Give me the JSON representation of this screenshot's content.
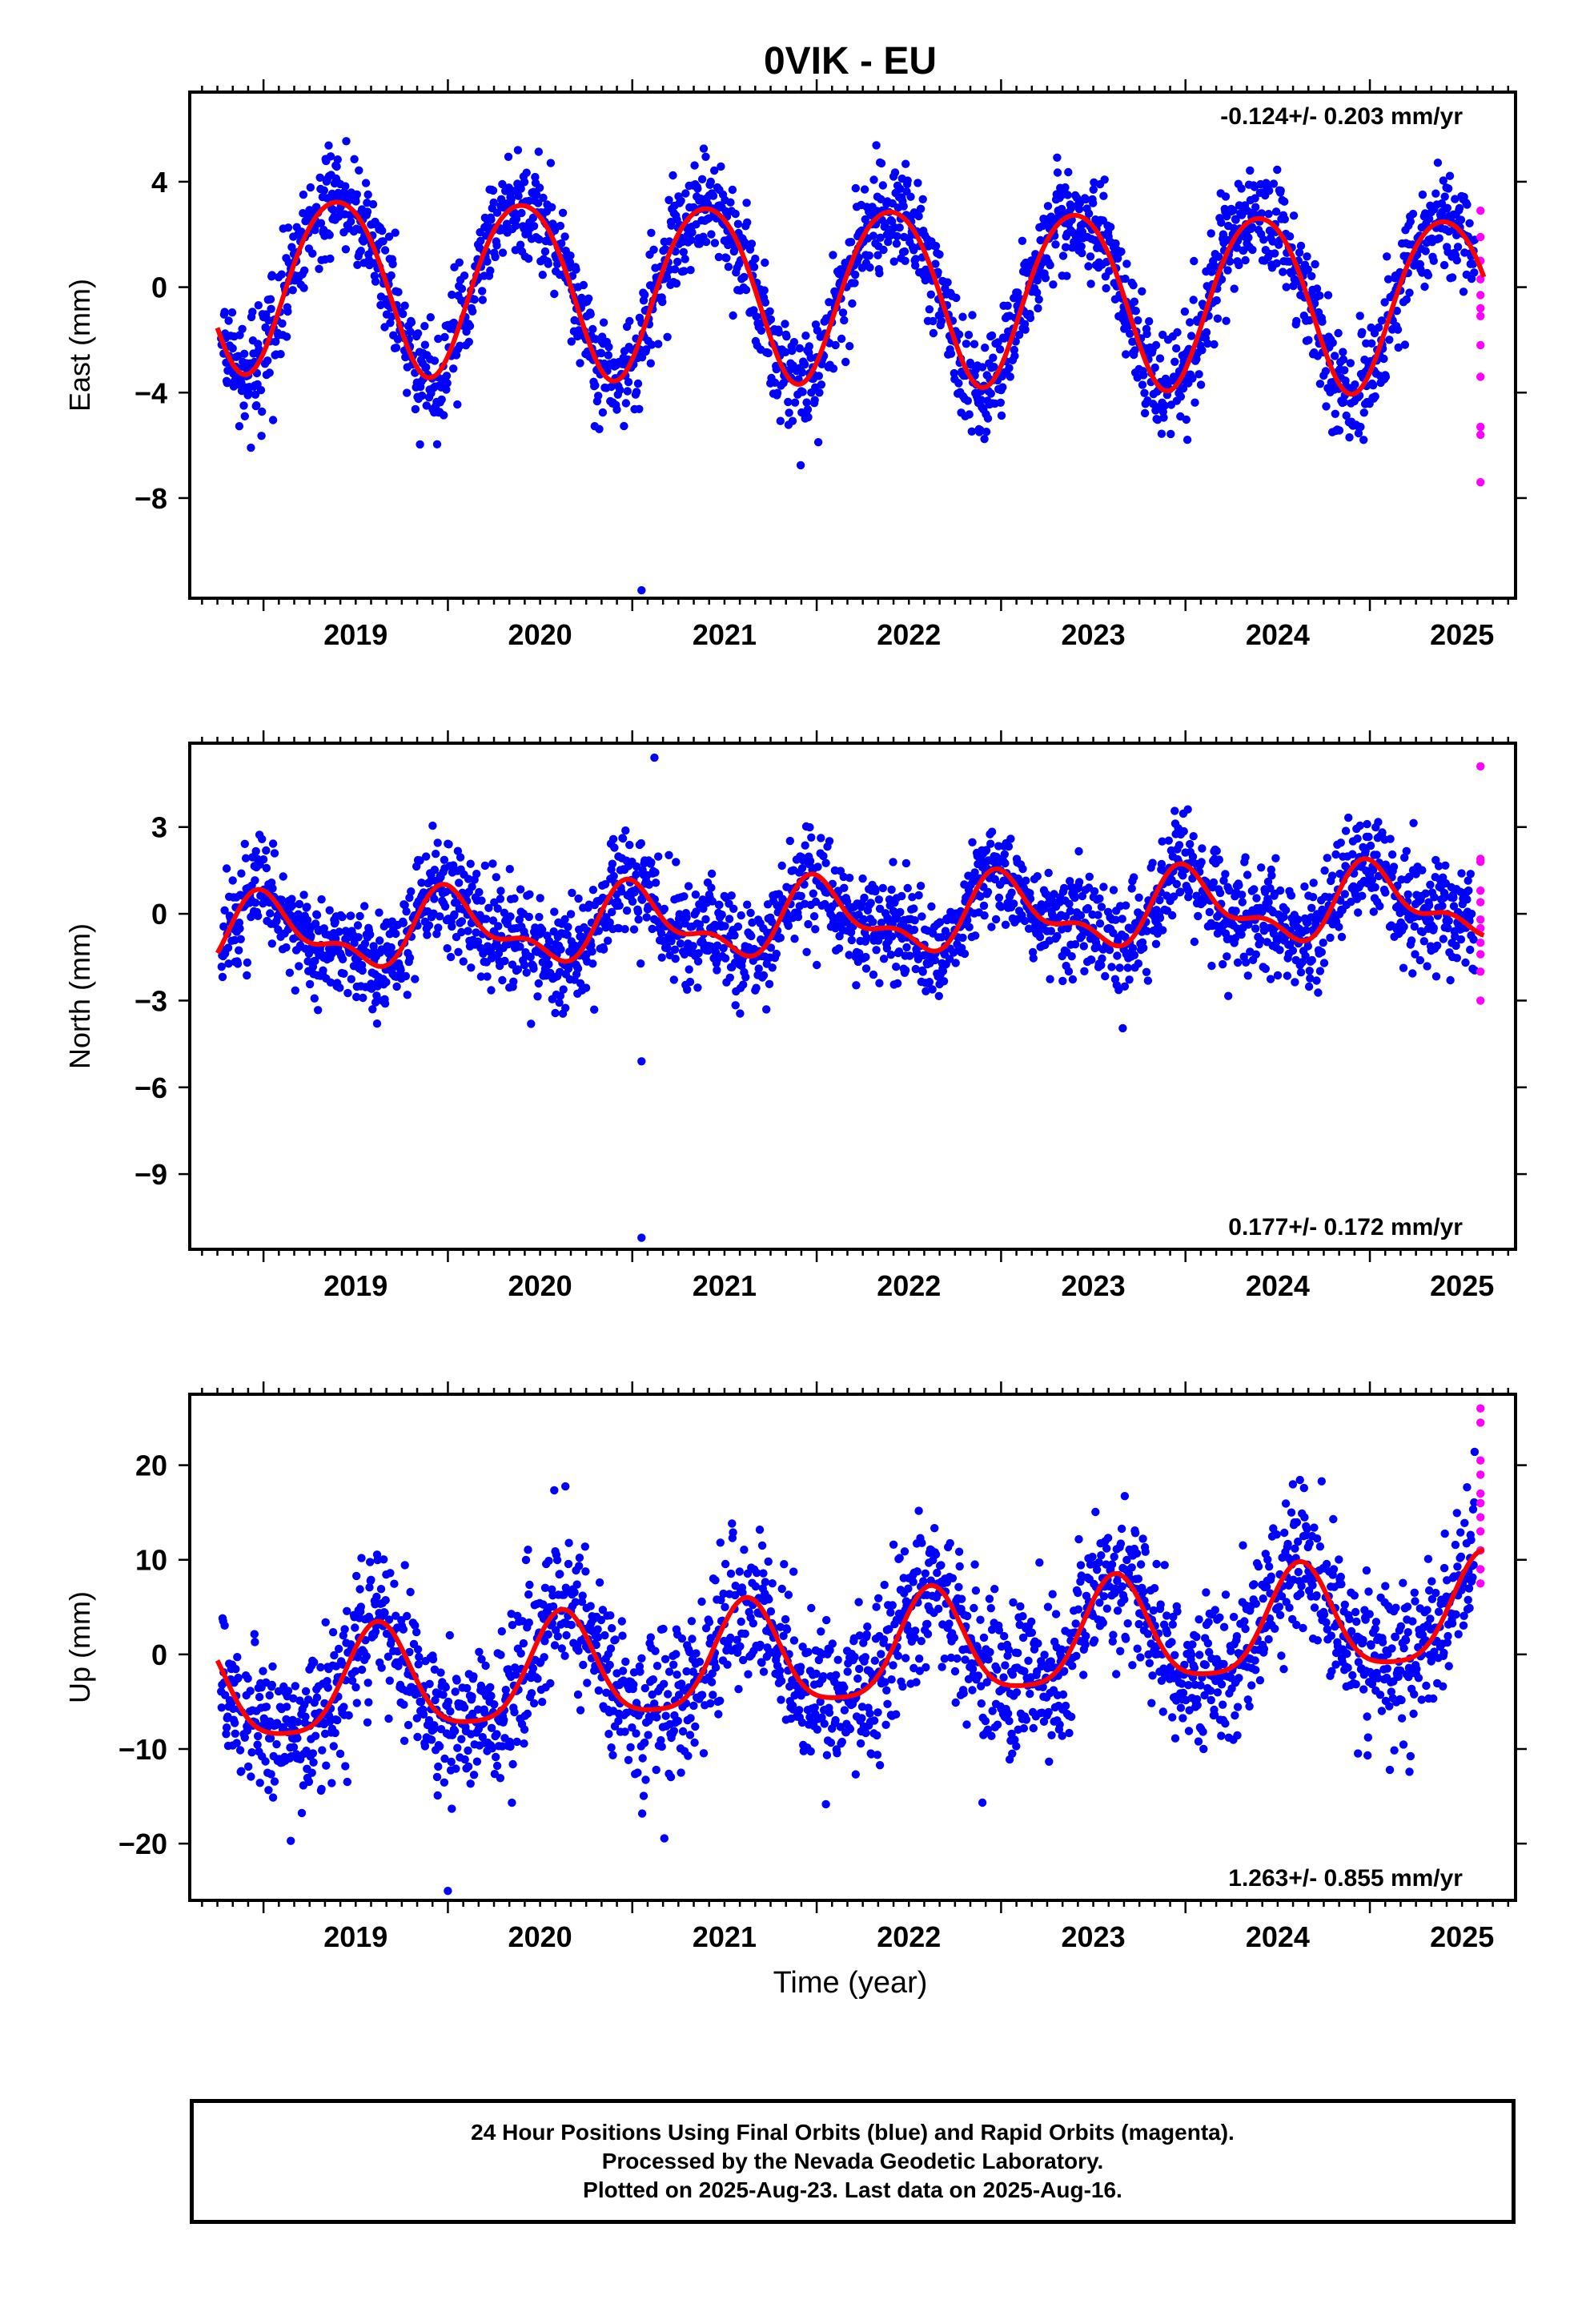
{
  "title": "0VIK - EU",
  "colors": {
    "final": "#0000ff",
    "rapid": "#ff00ff",
    "model": "#ff0000",
    "axis": "#000000"
  },
  "xlabel": "Time (year)",
  "caption": [
    "24 Hour Positions Using Final Orbits (blue) and Rapid Orbits (magenta).",
    "Processed by the Nevada Geodetic Laboratory.",
    "Plotted on 2025-Aug-23. Last data on 2025-Aug-16."
  ],
  "chart_data": [
    {
      "type": "scatter",
      "id": "east",
      "ylabel": "East (mm)",
      "rate_text": "-0.124+/- 0.203 mm/yr",
      "rate_position": "top-right",
      "xlim": [
        2018.6,
        2025.79
      ],
      "ylim": [
        -11.8,
        7.4
      ],
      "xticks": [
        2019,
        2020,
        2021,
        2022,
        2023,
        2024,
        2025
      ],
      "xtick_labels": [
        "2019",
        "2020",
        "2021",
        "2022",
        "2023",
        "2024",
        "2025"
      ],
      "yticks": [
        4,
        0,
        -4,
        -8
      ],
      "ytick_labels": [
        "4",
        "0",
        "−4",
        "−8"
      ],
      "model": {
        "name": "",
        "start": 2018.75,
        "end": 2025.62,
        "offset": -0.1,
        "rate": -0.124,
        "ref_year": 2022.0,
        "annual_amp": 3.3,
        "annual_peak": 0.4,
        "semiannual_amp": 0.3,
        "semiannual_peak": 0.15,
        "amp_drift": 0.0
      },
      "final_series": {
        "name": "Final Orbits",
        "start": 2018.77,
        "end": 2025.57,
        "noise_sd": 1.0,
        "outliers": [
          [
            2021.05,
            -11.5
          ]
        ]
      },
      "rapid_series": {
        "name": "Rapid Orbits",
        "x": 2025.6,
        "values": [
          2.9,
          1.9,
          1.0,
          0.3,
          -0.3,
          -0.8,
          -1.1,
          -2.2,
          -3.4,
          -5.3,
          -5.6,
          -7.4
        ]
      }
    },
    {
      "type": "scatter",
      "id": "north",
      "ylabel": "North (mm)",
      "rate_text": "0.177+/- 0.172 mm/yr",
      "rate_position": "bottom-right",
      "xlim": [
        2018.6,
        2025.79
      ],
      "ylim": [
        -11.6,
        5.9
      ],
      "xticks": [
        2019,
        2020,
        2021,
        2022,
        2023,
        2024,
        2025
      ],
      "xtick_labels": [
        "2019",
        "2020",
        "2021",
        "2022",
        "2023",
        "2024",
        "2025"
      ],
      "yticks": [
        3,
        0,
        -3,
        -6,
        -9
      ],
      "ytick_labels": [
        "3",
        "0",
        "−3",
        "−6",
        "−9"
      ],
      "model": {
        "name": "",
        "start": 2018.75,
        "end": 2025.62,
        "offset": -0.2,
        "rate": 0.177,
        "ref_year": 2022.0,
        "annual_amp": 1.1,
        "annual_peak": 0.02,
        "semiannual_amp": 0.55,
        "semiannual_peak": 0.45,
        "amp_drift": 0.0
      },
      "final_series": {
        "name": "Final Orbits",
        "start": 2018.77,
        "end": 2025.57,
        "noise_sd": 0.9,
        "outliers": [
          [
            2021.12,
            5.4
          ],
          [
            2021.05,
            -5.1
          ],
          [
            2021.05,
            -11.2
          ]
        ]
      },
      "rapid_series": {
        "name": "Rapid Orbits",
        "x": 2025.6,
        "values": [
          5.1,
          1.9,
          1.8,
          0.8,
          0.4,
          -0.2,
          -0.5,
          -1.0,
          -1.4,
          -2.0,
          -3.0
        ]
      }
    },
    {
      "type": "scatter",
      "id": "up",
      "ylabel": "Up (mm)",
      "rate_text": "1.263+/- 0.855 mm/yr",
      "rate_position": "bottom-right",
      "xlim": [
        2018.6,
        2025.79
      ],
      "ylim": [
        -26,
        27.5
      ],
      "xticks": [
        2019,
        2020,
        2021,
        2022,
        2023,
        2024,
        2025
      ],
      "xtick_labels": [
        "2019",
        "2020",
        "2021",
        "2022",
        "2023",
        "2024",
        "2025"
      ],
      "yticks": [
        20,
        10,
        0,
        -10,
        -20
      ],
      "ytick_labels": [
        "20",
        "10",
        "0",
        "−10",
        "−20"
      ],
      "model": {
        "name": "",
        "start": 2018.75,
        "end": 2025.62,
        "offset": -0.3,
        "rate": 1.263,
        "ref_year": 2022.0,
        "annual_amp": 5.6,
        "annual_peak": 0.62,
        "semiannual_amp": 1.2,
        "semiannual_peak": 0.12,
        "amp_drift": 0.0
      },
      "final_series": {
        "name": "Final Orbits",
        "start": 2018.77,
        "end": 2025.57,
        "noise_sd": 4.0,
        "outliers": [
          [
            2020.0,
            -25.0
          ]
        ]
      },
      "rapid_series": {
        "name": "Rapid Orbits",
        "x": 2025.6,
        "values": [
          26.0,
          24.5,
          20.5,
          19.0,
          17.0,
          16.0,
          14.5,
          13.0,
          11.0,
          9.0,
          7.5
        ]
      }
    }
  ]
}
